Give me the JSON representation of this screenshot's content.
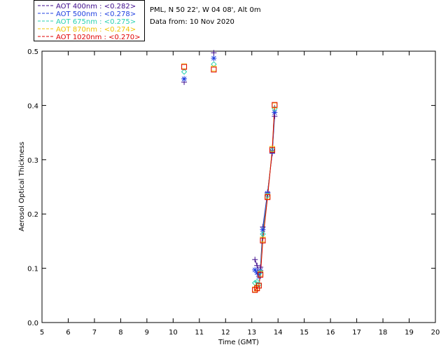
{
  "chart_data": {
    "type": "scatter",
    "xlabel": "Time (GMT)",
    "ylabel": "Aerosol Optical Thickness",
    "xlim": [
      5,
      20
    ],
    "ylim": [
      0,
      0.5
    ],
    "xticks": [
      "5",
      "6",
      "7",
      "8",
      "9",
      "10",
      "11",
      "12",
      "13",
      "14",
      "15",
      "16",
      "17",
      "18",
      "19",
      "20"
    ],
    "yticks": [
      "0.0",
      "0.1",
      "0.2",
      "0.3",
      "0.4",
      "0.5"
    ],
    "info": {
      "site": "PML, N 50 22', W 04 08', Alt 0m",
      "date": "Data from: 10 Nov 2020"
    },
    "series": [
      {
        "name": "AOT  400nm : <0.282>",
        "color": "#3d0a8c",
        "marker": "plus",
        "x": [
          10.42,
          11.55,
          13.12,
          13.2,
          13.27,
          13.33,
          13.42,
          13.6,
          13.78,
          13.87
        ],
        "y": [
          0.443,
          0.497,
          0.116,
          0.105,
          0.09,
          0.102,
          0.176,
          0.24,
          0.312,
          0.38
        ]
      },
      {
        "name": "AOT  500nm : <0.278>",
        "color": "#1f3fe0",
        "marker": "asterisk",
        "x": [
          10.42,
          11.55,
          13.12,
          13.2,
          13.27,
          13.33,
          13.42,
          13.6,
          13.78,
          13.87
        ],
        "y": [
          0.449,
          0.487,
          0.097,
          0.092,
          0.085,
          0.096,
          0.171,
          0.238,
          0.315,
          0.387
        ]
      },
      {
        "name": "AOT  675nm : <0.275>",
        "color": "#2ad2b0",
        "marker": "diamond",
        "x": [
          10.42,
          11.55,
          13.12,
          13.2,
          13.27,
          13.33,
          13.42,
          13.6,
          13.78,
          13.87
        ],
        "y": [
          0.462,
          0.476,
          0.073,
          0.075,
          0.07,
          0.093,
          0.163,
          0.234,
          0.318,
          0.394
        ]
      },
      {
        "name": "AOT  870nm : <0.274>",
        "color": "#f0c400",
        "marker": "square",
        "x": [
          10.42,
          11.55,
          13.12,
          13.2,
          13.27,
          13.33,
          13.42,
          13.6,
          13.78,
          13.87
        ],
        "y": [
          0.472,
          0.468,
          0.061,
          0.064,
          0.068,
          0.09,
          0.153,
          0.232,
          0.32,
          0.4
        ]
      },
      {
        "name": "AOT 1020nm : <0.270>",
        "color": "#e00000",
        "marker": "square",
        "x": [
          10.42,
          11.55,
          13.12,
          13.2,
          13.27,
          13.33,
          13.42,
          13.6,
          13.78,
          13.87
        ],
        "y": [
          0.471,
          0.466,
          0.06,
          0.063,
          0.068,
          0.088,
          0.151,
          0.231,
          0.318,
          0.401
        ]
      }
    ]
  }
}
